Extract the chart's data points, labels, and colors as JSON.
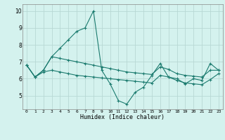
{
  "xlabel": "Humidex (Indice chaleur)",
  "x": [
    0,
    1,
    2,
    3,
    4,
    5,
    6,
    7,
    8,
    9,
    10,
    11,
    12,
    13,
    14,
    15,
    16,
    17,
    18,
    19,
    20,
    21,
    22,
    23
  ],
  "line1": [
    6.8,
    6.1,
    6.5,
    7.3,
    7.8,
    8.3,
    8.8,
    9.0,
    10.0,
    6.5,
    5.7,
    4.7,
    4.5,
    5.2,
    5.5,
    6.2,
    6.9,
    6.1,
    6.0,
    5.7,
    6.0,
    5.9,
    6.9,
    6.5
  ],
  "line2": [
    6.8,
    6.1,
    6.5,
    7.3,
    7.2,
    7.1,
    7.0,
    6.9,
    6.8,
    6.7,
    6.6,
    6.5,
    6.4,
    6.35,
    6.3,
    6.25,
    6.7,
    6.55,
    6.3,
    6.2,
    6.15,
    6.1,
    6.5,
    6.5
  ],
  "line3": [
    6.8,
    6.1,
    6.4,
    6.5,
    6.4,
    6.3,
    6.2,
    6.15,
    6.1,
    6.05,
    6.0,
    5.95,
    5.9,
    5.85,
    5.8,
    5.75,
    6.2,
    6.1,
    5.9,
    5.75,
    5.7,
    5.65,
    5.95,
    6.3
  ],
  "bg_color": "#d4f2ee",
  "grid_color": "#b8d8d4",
  "line_color": "#1a7a6e",
  "ylim": [
    4.2,
    10.4
  ],
  "xlim": [
    -0.5,
    23.5
  ],
  "yticks": [
    5,
    6,
    7,
    8,
    9,
    10
  ],
  "xticks": [
    0,
    1,
    2,
    3,
    4,
    5,
    6,
    7,
    8,
    9,
    10,
    11,
    12,
    13,
    14,
    15,
    16,
    17,
    18,
    19,
    20,
    21,
    22,
    23
  ]
}
